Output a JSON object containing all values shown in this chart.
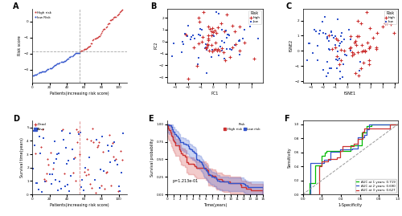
{
  "panel_A": {
    "title": "A",
    "n_low": 55,
    "n_high": 50,
    "xlabel": "Patients(increasing risk score)",
    "ylabel": "Risk score",
    "low_color": "#3355cc",
    "high_color": "#cc3333",
    "yticks": [
      -3,
      -2,
      -1,
      0
    ]
  },
  "panel_B": {
    "title": "B",
    "xlabel": "PC1",
    "ylabel": "PC2",
    "high_color": "#cc3333",
    "low_color": "#3355cc",
    "legend_title": "Risk"
  },
  "panel_C": {
    "title": "C",
    "xlabel": "tSNE1",
    "ylabel": "tSNE2",
    "high_color": "#cc3333",
    "low_color": "#3355cc",
    "legend_title": "Risk"
  },
  "panel_D": {
    "title": "D",
    "xlabel": "Patients(increasing risk score)",
    "ylabel": "Survival time(years)",
    "dead_color": "#cc3333",
    "alive_color": "#3355cc",
    "risk_cutoff": 55,
    "n_total": 105,
    "cutoff_color": "#dd8888"
  },
  "panel_E": {
    "title": "E",
    "xlabel": "Time(years)",
    "ylabel": "Survival probability",
    "high_color": "#cc3333",
    "low_color": "#3355cc",
    "pvalue": "p=1.213e-01",
    "legend_labels": [
      "High risk",
      "Low risk"
    ],
    "legend_title": "Risk"
  },
  "panel_F": {
    "title": "F",
    "xlabel": "1-Specificity",
    "ylabel": "Sensitivity",
    "colors": [
      "#00bb00",
      "#3355cc",
      "#cc3333"
    ],
    "auc_labels": [
      "AUC at 1 years: 0.719",
      "AUC at 2 years: 0.690",
      "AUC at 3 years: 0.627"
    ],
    "diag_color": "#999999"
  }
}
